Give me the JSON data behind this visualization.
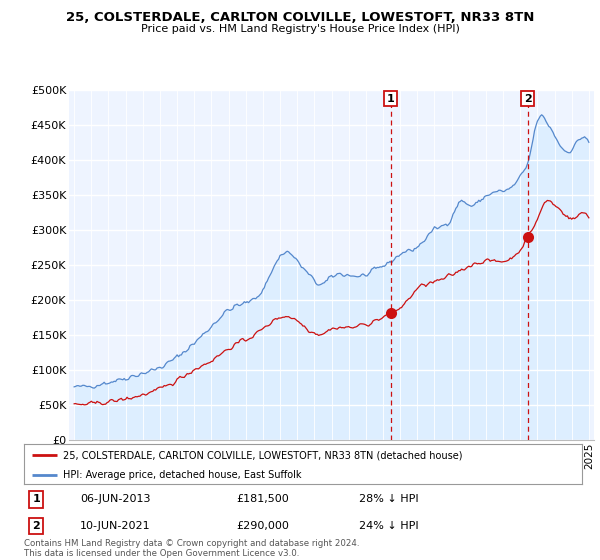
{
  "title": "25, COLSTERDALE, CARLTON COLVILLE, LOWESTOFT, NR33 8TN",
  "subtitle": "Price paid vs. HM Land Registry's House Price Index (HPI)",
  "ylabel_ticks": [
    "£0",
    "£50K",
    "£100K",
    "£150K",
    "£200K",
    "£250K",
    "£300K",
    "£350K",
    "£400K",
    "£450K",
    "£500K"
  ],
  "ytick_values": [
    0,
    50000,
    100000,
    150000,
    200000,
    250000,
    300000,
    350000,
    400000,
    450000,
    500000
  ],
  "xlim_start": 1994.7,
  "xlim_end": 2025.3,
  "ylim": [
    0,
    500000
  ],
  "marker1_x": 2013.44,
  "marker1_y": 181500,
  "marker2_x": 2021.44,
  "marker2_y": 290000,
  "legend_line1": "25, COLSTERDALE, CARLTON COLVILLE, LOWESTOFT, NR33 8TN (detached house)",
  "legend_line2": "HPI: Average price, detached house, East Suffolk",
  "footnote": "Contains HM Land Registry data © Crown copyright and database right 2024.\nThis data is licensed under the Open Government Licence v3.0.",
  "hpi_color": "#5588cc",
  "hpi_fill_color": "#ddeeff",
  "price_color": "#cc1111",
  "vline_color": "#cc1111",
  "background_color": "#eef4ff",
  "grid_color": "#ffffff",
  "box_border_color": "#cc1111"
}
